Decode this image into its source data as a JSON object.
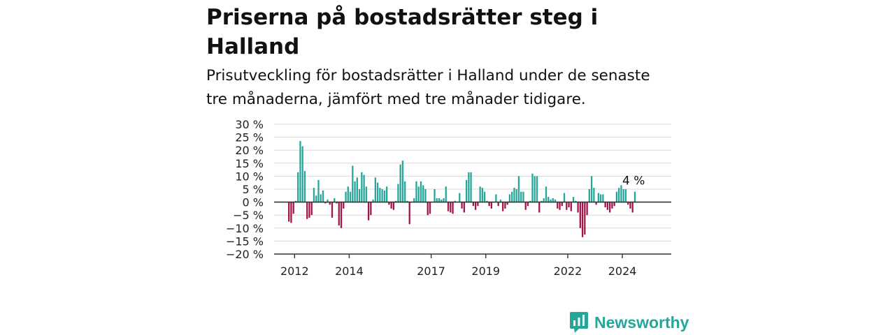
{
  "header": {
    "title": "Priserna på bostadsrätter steg i Halland",
    "subtitle": "Prisutveckling för bostadsrätter i Halland under de senaste tre månaderna, jämfört med tre månader tidigare."
  },
  "brand": {
    "name": "Newsworthy",
    "color": "#26a69a"
  },
  "colors": {
    "positive": "#26a69a",
    "negative": "#a3154a",
    "grid": "#d9d9d9",
    "axis": "#333333"
  },
  "chart_data": {
    "type": "bar",
    "title": "Priserna på bostadsrätter steg i Halland",
    "subtitle": "Prisutveckling för bostadsrätter i Halland under de senaste tre månaderna, jämfört med tre månader tidigare.",
    "unit": "%",
    "ylim": [
      -20,
      30
    ],
    "yticks": [
      30,
      25,
      20,
      15,
      10,
      5,
      0,
      -5,
      -10,
      -15,
      -20
    ],
    "ytick_labels": [
      "30 %",
      "25 %",
      "20 %",
      "15 %",
      "10 %",
      "5 %",
      "0 %",
      "−5 %",
      "−10 %",
      "−15 %",
      "−20 %"
    ],
    "xlim": [
      2011.25,
      2025.79
    ],
    "xticks": [
      {
        "label": "2012",
        "value": 2012.0
      },
      {
        "label": "2014",
        "value": 2014.0
      },
      {
        "label": "2017",
        "value": 2017.0
      },
      {
        "label": "2019",
        "value": 2019.0
      },
      {
        "label": "2022",
        "value": 2022.0
      },
      {
        "label": "2024",
        "value": 2024.0
      }
    ],
    "grid": true,
    "start": "2011-04",
    "frequency": "monthly",
    "values": [
      0,
      0,
      0,
      0,
      0,
      0,
      -7.5,
      -8,
      -4.5,
      0.5,
      11.5,
      23.5,
      21.5,
      12,
      -6.5,
      -6,
      -5,
      5.5,
      2.5,
      8.5,
      3,
      4.5,
      -0.5,
      1,
      -1,
      -6,
      1.5,
      -0.5,
      -9,
      -10,
      -2.5,
      4,
      6,
      4,
      14,
      8,
      9.5,
      5,
      11.5,
      10.5,
      6,
      -7,
      -5,
      1,
      9.5,
      7.5,
      5.5,
      5,
      4.5,
      6,
      -1,
      -2.5,
      -3,
      0.5,
      7,
      14.5,
      16,
      8,
      0.5,
      -8.5,
      0,
      1.5,
      8,
      6,
      8,
      6.5,
      5,
      -5,
      -4.5,
      0,
      5,
      1.5,
      1.5,
      1,
      1.5,
      6,
      -3.5,
      -4,
      -4.5,
      0.5,
      0,
      3.5,
      -2.5,
      -4,
      8.5,
      11.5,
      11.5,
      -1.5,
      -3,
      -1.5,
      6,
      5.5,
      4,
      0.5,
      -1.5,
      -2.5,
      0,
      3,
      -1.5,
      1,
      -3.5,
      -2.5,
      -1,
      3,
      4,
      5.5,
      5,
      10,
      4,
      4,
      -3,
      -1.5,
      0.5,
      11,
      10,
      10,
      -4,
      0.5,
      1.5,
      6,
      2,
      1,
      1.5,
      1,
      -2.5,
      -3,
      -1.5,
      3.5,
      -3,
      -2,
      -3.5,
      2,
      0.5,
      -4,
      -10,
      -13.5,
      -12.5,
      -5,
      5,
      10,
      5.5,
      -1,
      3.5,
      3,
      3,
      -2,
      -3,
      -4,
      -2.5,
      -1.5,
      4,
      5.5,
      6.5,
      5,
      5,
      -1,
      -2.5,
      -4,
      4
    ],
    "annotations": [
      {
        "text": "4 %",
        "target": "last"
      }
    ]
  }
}
